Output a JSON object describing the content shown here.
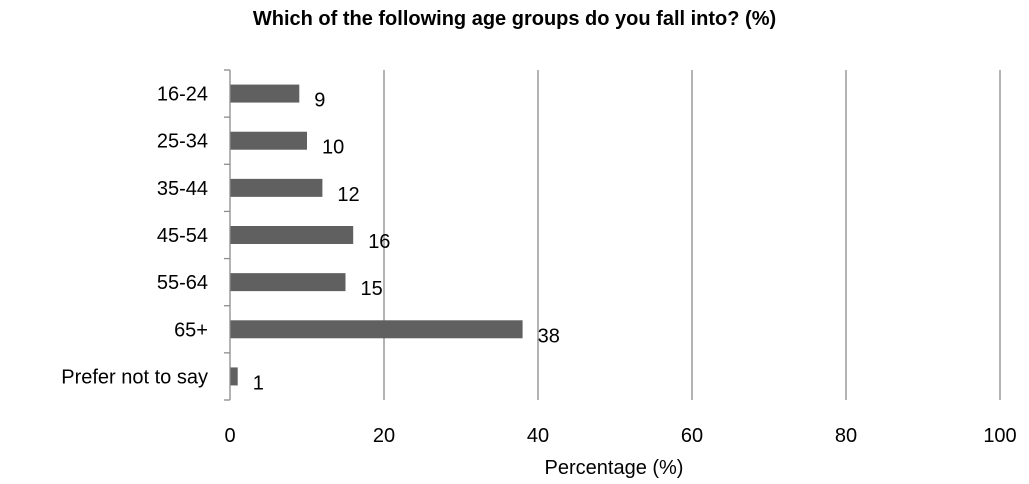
{
  "chart_data": {
    "type": "bar",
    "orientation": "horizontal",
    "title": "Which of the following age groups do you fall into? (%)",
    "xlabel": "Percentage (%)",
    "ylabel": "",
    "categories": [
      "16-24",
      "25-34",
      "35-44",
      "45-54",
      "55-64",
      "65+",
      "Prefer not to say"
    ],
    "values": [
      9,
      10,
      12,
      16,
      15,
      38,
      1
    ],
    "xlim": [
      0,
      100
    ],
    "xticks": [
      0,
      20,
      40,
      60,
      80,
      100
    ],
    "grid": "vertical",
    "legend": "none",
    "data_labels": true,
    "colors": {
      "bar": "#606060",
      "grid": "#8c8c8c",
      "axis": "#8c8c8c",
      "text": "#000000"
    }
  }
}
